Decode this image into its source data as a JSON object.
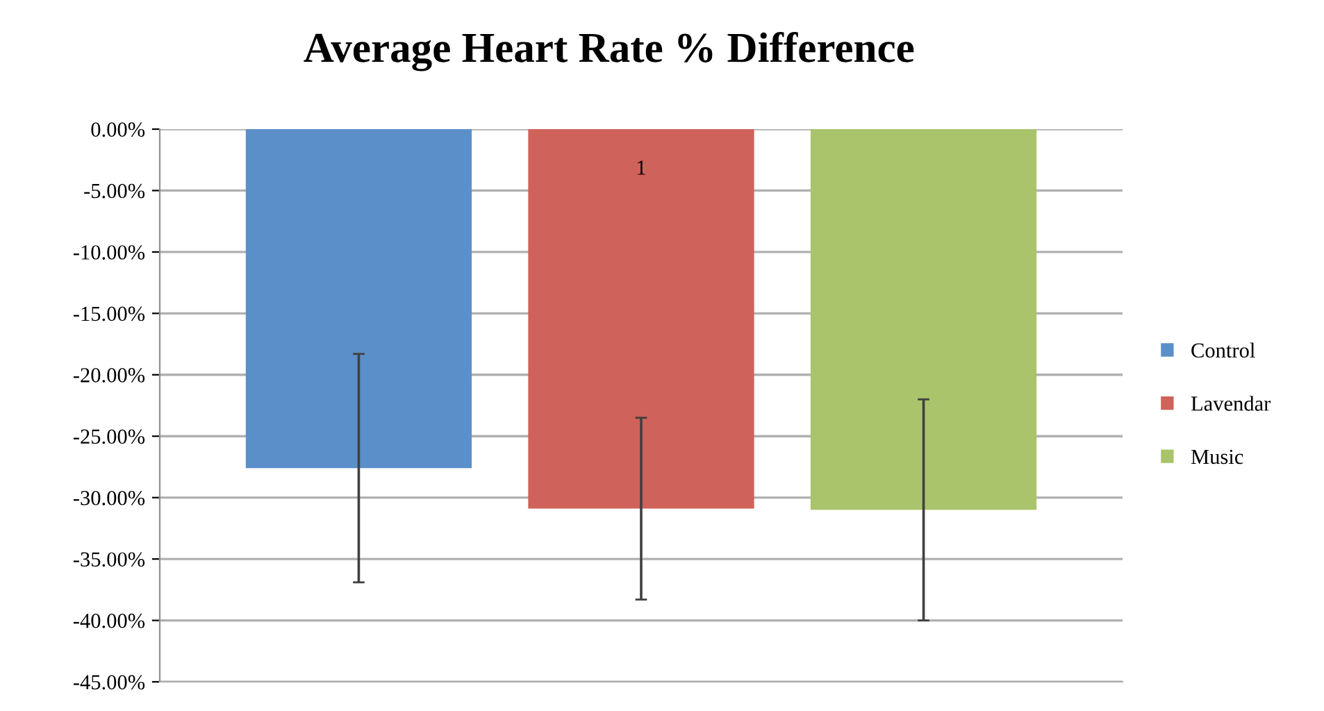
{
  "chart_data": {
    "type": "bar",
    "title": "Average Heart Rate % Difference",
    "categories": [
      null
    ],
    "series": [
      {
        "name": "Control",
        "color": "#5b8fc9",
        "values": [
          -27.6
        ],
        "errors": [
          9.3
        ]
      },
      {
        "name": "Lavendar",
        "color": "#cf625a",
        "values": [
          -30.9
        ],
        "errors": [
          7.4
        ]
      },
      {
        "name": "Music",
        "color": "#a9c46b",
        "values": [
          -31.0
        ],
        "errors": [
          9.0
        ]
      }
    ],
    "ylim": [
      -45,
      0
    ],
    "yticks": [
      {
        "value": 0,
        "label": "0.00%"
      },
      {
        "value": -5,
        "label": "-5.00%"
      },
      {
        "value": -10,
        "label": "-10.00%"
      },
      {
        "value": -15,
        "label": "-15.00%"
      },
      {
        "value": -20,
        "label": "-20.00%"
      },
      {
        "value": -25,
        "label": "-25.00%"
      },
      {
        "value": -30,
        "label": "-30.00%"
      },
      {
        "value": -35,
        "label": "-35.00%"
      },
      {
        "value": -40,
        "label": "-40.00%"
      },
      {
        "value": -45,
        "label": "-45.00%"
      }
    ],
    "annotations": [
      "1"
    ],
    "grid": "y",
    "legend": "right",
    "tick_labels": "y"
  }
}
